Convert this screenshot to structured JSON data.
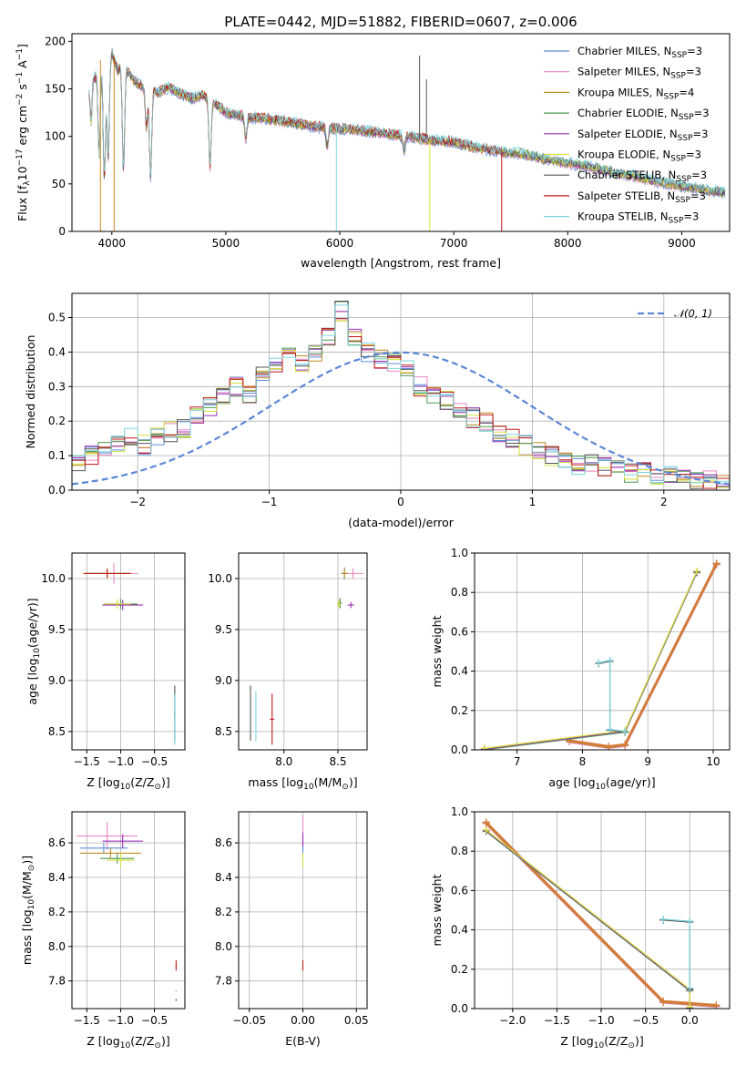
{
  "title": "PLATE=0442, MJD=51882, FIBERID=0607, z=0.006",
  "colors": {
    "Chabrier MILES": "#5b8fd6",
    "Salpeter MILES": "#e986c2",
    "Kroupa MILES": "#c08a1e",
    "Chabrier ELODIE": "#4e9a4e",
    "Salpeter ELODIE": "#9a2fb8",
    "Kroupa ELODIE": "#d6e03a",
    "Chabrier STELIB": "#555555",
    "Salpeter STELIB": "#c01818",
    "Kroupa STELIB": "#7fd6e0",
    "normal_curve": "#5b86d6"
  },
  "chart_data": [
    {
      "id": "spectrum",
      "type": "line",
      "title": "PLATE=0442, MJD=51882, FIBERID=0607, z=0.006",
      "xlabel": "wavelength [Angstrom, rest frame]",
      "ylabel_parts": [
        "Flux [f",
        "λ",
        "10",
        "−17",
        " erg cm",
        "−2",
        " s",
        "−1",
        " A",
        "−1",
        "]"
      ],
      "xlim": [
        3650,
        9420
      ],
      "ylim": [
        0,
        208
      ],
      "xticks": [
        4000,
        5000,
        6000,
        7000,
        8000,
        9000
      ],
      "yticks": [
        0,
        50,
        100,
        150,
        200
      ],
      "grid": false,
      "legend_position": "top-right",
      "legend": [
        {
          "label": "Chabrier MILES",
          "nssp": "3"
        },
        {
          "label": "Salpeter MILES",
          "nssp": "3"
        },
        {
          "label": "Kroupa MILES",
          "nssp": "4"
        },
        {
          "label": "Chabrier ELODIE",
          "nssp": "3"
        },
        {
          "label": "Salpeter ELODIE",
          "nssp": "3"
        },
        {
          "label": "Kroupa ELODIE",
          "nssp": "3"
        },
        {
          "label": "Chabrier STELIB",
          "nssp": "3"
        },
        {
          "label": "Salpeter STELIB",
          "nssp": "3"
        },
        {
          "label": "Kroupa STELIB",
          "nssp": "3"
        }
      ],
      "legend_suffix": "N",
      "legend_sub": "SSP",
      "continuum_x": [
        3800,
        3830,
        3850,
        3900,
        3950,
        4000,
        4050,
        4100,
        4200,
        4300,
        4400,
        4500,
        4600,
        4700,
        4800,
        4900,
        5000,
        5200,
        5400,
        5600,
        5800,
        6000,
        6200,
        6400,
        6600,
        6800,
        7000,
        7200,
        7400,
        7600,
        7800,
        8000,
        8200,
        8400,
        8600,
        8800,
        9000,
        9200,
        9420
      ],
      "continuum_y": [
        150,
        175,
        160,
        180,
        172,
        188,
        170,
        175,
        158,
        150,
        146,
        152,
        145,
        140,
        143,
        135,
        125,
        120,
        118,
        114,
        110,
        108,
        106,
        103,
        100,
        96,
        94,
        88,
        84,
        82,
        76,
        72,
        68,
        62,
        58,
        52,
        48,
        44,
        40
      ],
      "absorption_lines": [
        {
          "x": 3820,
          "depth": 50
        },
        {
          "x": 3889,
          "depth": 95
        },
        {
          "x": 3934,
          "depth": 120
        },
        {
          "x": 3968,
          "depth": 100
        },
        {
          "x": 4102,
          "depth": 110
        },
        {
          "x": 4304,
          "depth": 40
        },
        {
          "x": 4340,
          "depth": 90
        },
        {
          "x": 4861,
          "depth": 70
        },
        {
          "x": 5175,
          "depth": 22
        },
        {
          "x": 5890,
          "depth": 20
        },
        {
          "x": 6563,
          "depth": 15
        }
      ],
      "spikes": [
        {
          "x": 3900,
          "to": 0,
          "series": "Kroupa MILES"
        },
        {
          "x": 4020,
          "to": 0,
          "series": "Kroupa MILES"
        },
        {
          "x": 5970,
          "to": 0,
          "series": "Kroupa STELIB"
        },
        {
          "x": 6790,
          "to": 0,
          "series": "Kroupa ELODIE"
        },
        {
          "x": 7420,
          "to": 0,
          "series": "Salpeter STELIB"
        },
        {
          "x": 6700,
          "to": 185,
          "series": "Chabrier STELIB"
        },
        {
          "x": 6760,
          "to": 160,
          "series": "Chabrier STELIB"
        }
      ]
    },
    {
      "id": "residuals",
      "type": "step",
      "xlabel": "(data-model)/error",
      "ylabel": "Normed distribution",
      "xlim": [
        -2.5,
        2.5
      ],
      "ylim": [
        0,
        0.57
      ],
      "xticks": [
        -2,
        -1,
        0,
        1,
        2
      ],
      "xticklabels": [
        "−2",
        "−1",
        "0",
        "1",
        "2"
      ],
      "yticks": [
        0.0,
        0.1,
        0.2,
        0.3,
        0.4,
        0.5
      ],
      "yticklabels": [
        "0.0",
        "0.1",
        "0.2",
        "0.3",
        "0.4",
        "0.5"
      ],
      "grid": true,
      "legend_position": "top-right",
      "legend_label": "𝒩(0, 1)",
      "bin_edges_start": -2.5,
      "bin_width": 0.1,
      "base_profile": [
        0.08,
        0.1,
        0.12,
        0.14,
        0.15,
        0.13,
        0.15,
        0.17,
        0.18,
        0.22,
        0.24,
        0.27,
        0.3,
        0.28,
        0.33,
        0.37,
        0.41,
        0.36,
        0.4,
        0.45,
        0.52,
        0.44,
        0.4,
        0.38,
        0.37,
        0.35,
        0.3,
        0.28,
        0.26,
        0.24,
        0.21,
        0.2,
        0.17,
        0.15,
        0.13,
        0.12,
        0.1,
        0.09,
        0.07,
        0.08,
        0.07,
        0.06,
        0.05,
        0.05,
        0.04,
        0.04,
        0.03,
        0.03,
        0.03,
        0.02
      ]
    },
    {
      "id": "age_vs_Z",
      "type": "errorbar",
      "xlabel_parts": [
        "Z [log",
        "10",
        "(Z/Z",
        "⊙",
        ")]"
      ],
      "ylabel_parts": [
        "age  [log",
        "10",
        "(age/yr)]"
      ],
      "xlim": [
        -1.72,
        -0.05
      ],
      "ylim": [
        8.32,
        10.25
      ],
      "xticks": [
        -1.5,
        -1.0,
        -0.5
      ],
      "xticklabels": [
        "−1.5",
        "−1.0",
        "−0.5"
      ],
      "yticks": [
        8.5,
        9.0,
        9.5,
        10.0
      ],
      "yticklabels": [
        "8.5",
        "9.0",
        "9.5",
        "10.0"
      ],
      "grid": true,
      "points": [
        {
          "series": "Chabrier MILES",
          "x": -1.2,
          "y": 10.05,
          "xe": 0.3,
          "ye": 0.05
        },
        {
          "series": "Salpeter MILES",
          "x": -1.1,
          "y": 10.05,
          "xe": 0.35,
          "ye": 0.1
        },
        {
          "series": "Kroupa MILES",
          "x": -1.2,
          "y": 10.05,
          "xe": 0.35,
          "ye": 0.05
        },
        {
          "series": "Salpeter STELIB",
          "x": -1.2,
          "y": 10.05,
          "xe": 0.35,
          "ye": 0.04
        },
        {
          "series": "Chabrier ELODIE",
          "x": -1.0,
          "y": 9.75,
          "xe": 0.25,
          "ye": 0.05
        },
        {
          "series": "Salpeter ELODIE",
          "x": -0.97,
          "y": 9.74,
          "xe": 0.3,
          "ye": 0.05
        },
        {
          "series": "Kroupa ELODIE",
          "x": -1.05,
          "y": 9.75,
          "xe": 0.2,
          "ye": 0.05
        },
        {
          "series": "Chabrier STELIB",
          "x": -0.2,
          "y": 8.68,
          "xe": 0.01,
          "ye": 0.27
        },
        {
          "series": "Kroupa STELIB",
          "x": -0.2,
          "y": 8.62,
          "xe": 0.01,
          "ye": 0.25
        }
      ]
    },
    {
      "id": "age_vs_mass",
      "type": "errorbar",
      "xlabel_parts": [
        "mass [log",
        "10",
        "(M/M",
        "⊙",
        ")]"
      ],
      "xlim": [
        7.58,
        8.77
      ],
      "ylim": [
        8.32,
        10.25
      ],
      "xticks": [
        8.0,
        8.5
      ],
      "xticklabels": [
        "8.0",
        "8.5"
      ],
      "yticks": [
        8.5,
        9.0,
        9.5,
        10.0
      ],
      "yticklabels": [
        "8.5",
        "9.0",
        "9.5",
        "10.0"
      ],
      "grid": true,
      "points": [
        {
          "series": "Chabrier MILES",
          "x": 8.56,
          "y": 10.05,
          "xe": 0.03,
          "ye": 0.06
        },
        {
          "series": "Salpeter MILES",
          "x": 8.64,
          "y": 10.05,
          "xe": 0.1,
          "ye": 0.05
        },
        {
          "series": "Kroupa MILES",
          "x": 8.56,
          "y": 10.05,
          "xe": 0.03,
          "ye": 0.05
        },
        {
          "series": "Chabrier ELODIE",
          "x": 8.52,
          "y": 9.76,
          "xe": 0.02,
          "ye": 0.05
        },
        {
          "series": "Salpeter ELODIE",
          "x": 8.62,
          "y": 9.74,
          "xe": 0.03,
          "ye": 0.03
        },
        {
          "series": "Kroupa ELODIE",
          "x": 8.51,
          "y": 9.75,
          "xe": 0.02,
          "ye": 0.04
        },
        {
          "series": "Chabrier STELIB",
          "x": 7.69,
          "y": 8.68,
          "xe": 0.0,
          "ye": 0.27
        },
        {
          "series": "Kroupa STELIB",
          "x": 7.74,
          "y": 8.65,
          "xe": 0.0,
          "ye": 0.25
        },
        {
          "series": "Salpeter STELIB",
          "x": 7.89,
          "y": 8.62,
          "xe": 0.02,
          "ye": 0.25
        }
      ]
    },
    {
      "id": "weight_vs_age",
      "type": "line",
      "xlabel_parts": [
        "age  [log",
        "10",
        "(age/yr)]"
      ],
      "ylabel": "mass weight",
      "xlim": [
        6.35,
        10.25
      ],
      "ylim": [
        0,
        1.0
      ],
      "xticks": [
        7,
        8,
        9,
        10
      ],
      "xticklabels": [
        "7",
        "8",
        "9",
        "10"
      ],
      "yticks": [
        0.0,
        0.2,
        0.4,
        0.6,
        0.8,
        1.0
      ],
      "yticklabels": [
        "0.0",
        "0.2",
        "0.4",
        "0.6",
        "0.8",
        "1.0"
      ],
      "grid": true,
      "series": [
        {
          "group": "MILES",
          "x": [
            7.8,
            8.4,
            8.65,
            10.05
          ],
          "y": [
            0.04,
            0.01,
            0.02,
            0.94
          ],
          "names": [
            "Chabrier MILES",
            "Salpeter MILES",
            "Kroupa MILES",
            "Salpeter STELIB"
          ]
        },
        {
          "group": "ELODIE",
          "x": [
            6.5,
            8.65,
            9.75
          ],
          "y": [
            0.0,
            0.09,
            0.9
          ],
          "names": [
            "Chabrier ELODIE",
            "Salpeter ELODIE",
            "Kroupa ELODIE"
          ]
        },
        {
          "group": "STELIB",
          "x": [
            8.25,
            8.42,
            8.42,
            8.65
          ],
          "y": [
            0.44,
            0.45,
            0.1,
            0.09
          ],
          "names": [
            "Chabrier STELIB",
            "Kroupa STELIB"
          ]
        }
      ]
    },
    {
      "id": "mass_vs_Z",
      "type": "errorbar",
      "xlabel_parts": [
        "Z [log",
        "10",
        "(Z/Z",
        "⊙",
        ")]"
      ],
      "ylabel_parts": [
        "mass [log",
        "10",
        "(M/M",
        "⊙",
        ")]"
      ],
      "xlim": [
        -1.72,
        -0.05
      ],
      "ylim": [
        7.64,
        8.78
      ],
      "xticks": [
        -1.5,
        -1.0,
        -0.5
      ],
      "xticklabels": [
        "−1.5",
        "−1.0",
        "−0.5"
      ],
      "yticks": [
        7.8,
        8.0,
        8.2,
        8.4,
        8.6
      ],
      "yticklabels": [
        "7.8",
        "8.0",
        "8.2",
        "8.4",
        "8.6"
      ],
      "grid": true,
      "points": [
        {
          "series": "Salpeter MILES",
          "x": -1.2,
          "y": 8.64,
          "xe": 0.45,
          "ye": 0.08
        },
        {
          "series": "Chabrier MILES",
          "x": -1.25,
          "y": 8.57,
          "xe": 0.35,
          "ye": 0.03
        },
        {
          "series": "Kroupa MILES",
          "x": -1.15,
          "y": 8.54,
          "xe": 0.45,
          "ye": 0.03
        },
        {
          "series": "Salpeter ELODIE",
          "x": -0.97,
          "y": 8.61,
          "xe": 0.3,
          "ye": 0.04
        },
        {
          "series": "Chabrier ELODIE",
          "x": -1.05,
          "y": 8.51,
          "xe": 0.25,
          "ye": 0.03
        },
        {
          "series": "Kroupa ELODIE",
          "x": -1.0,
          "y": 8.5,
          "xe": 0.2,
          "ye": 0.04
        },
        {
          "series": "Salpeter STELIB",
          "x": -0.18,
          "y": 7.89,
          "xe": 0.01,
          "ye": 0.03
        },
        {
          "series": "Kroupa STELIB",
          "x": -0.18,
          "y": 7.74,
          "xe": 0.01,
          "ye": 0.005
        },
        {
          "series": "Chabrier STELIB",
          "x": -0.18,
          "y": 7.69,
          "xe": 0.01,
          "ye": 0.005
        }
      ]
    },
    {
      "id": "mass_vs_ebv",
      "type": "errorbar",
      "xlabel": "E(B-V)",
      "xlim": [
        -0.06,
        0.06
      ],
      "ylim": [
        7.64,
        8.78
      ],
      "xticks": [
        -0.05,
        0.0,
        0.05
      ],
      "xticklabels": [
        "−0.05",
        "0.00",
        "0.05"
      ],
      "yticks": [
        7.8,
        8.0,
        8.2,
        8.4,
        8.6
      ],
      "yticklabels": [
        "7.8",
        "8.0",
        "8.2",
        "8.4",
        "8.6"
      ],
      "grid": true,
      "points": [
        {
          "series": "Salpeter MILES",
          "x": 0.0,
          "y": 8.66,
          "xe": 0.0,
          "ye": 0.1
        },
        {
          "series": "Chabrier MILES",
          "x": 0.0,
          "y": 8.57,
          "xe": 0.0,
          "ye": 0.03
        },
        {
          "series": "Salpeter ELODIE",
          "x": 0.0,
          "y": 8.62,
          "xe": 0.0,
          "ye": 0.04
        },
        {
          "series": "Kroupa ELODIE",
          "x": 0.0,
          "y": 8.5,
          "xe": 0.0,
          "ye": 0.04
        },
        {
          "series": "Salpeter STELIB",
          "x": 0.0,
          "y": 7.89,
          "xe": 0.0,
          "ye": 0.03
        }
      ]
    },
    {
      "id": "weight_vs_Z",
      "type": "line",
      "xlabel_parts": [
        "Z [log",
        "10",
        "(Z/Z",
        "⊙",
        ")]"
      ],
      "ylabel": "mass weight",
      "xlim": [
        -2.43,
        0.45
      ],
      "ylim": [
        0,
        1.0
      ],
      "xticks": [
        -2.0,
        -1.5,
        -1.0,
        -0.5,
        0.0
      ],
      "xticklabels": [
        "−2.0",
        "−1.5",
        "−1.0",
        "−0.5",
        "0.0"
      ],
      "yticks": [
        0.0,
        0.2,
        0.4,
        0.6,
        0.8,
        1.0
      ],
      "yticklabels": [
        "0.0",
        "0.2",
        "0.4",
        "0.6",
        "0.8",
        "1.0"
      ],
      "grid": true,
      "series": [
        {
          "group": "MILES",
          "x": [
            -2.3,
            -0.3,
            0.3
          ],
          "y": [
            0.94,
            0.03,
            0.01
          ],
          "names": [
            "Chabrier MILES",
            "Salpeter MILES",
            "Kroupa MILES",
            "Salpeter STELIB"
          ]
        },
        {
          "group": "ELODIE",
          "x": [
            -2.3,
            0.0,
            0.0
          ],
          "y": [
            0.9,
            0.09,
            0.0
          ],
          "names": [
            "Chabrier ELODIE",
            "Salpeter ELODIE",
            "Kroupa ELODIE"
          ]
        },
        {
          "group": "STELIB",
          "x": [
            0.0,
            0.0,
            -0.3,
            0.0
          ],
          "y": [
            0.1,
            0.44,
            0.45,
            0.44
          ],
          "names": [
            "Chabrier STELIB",
            "Kroupa STELIB"
          ]
        }
      ]
    }
  ]
}
